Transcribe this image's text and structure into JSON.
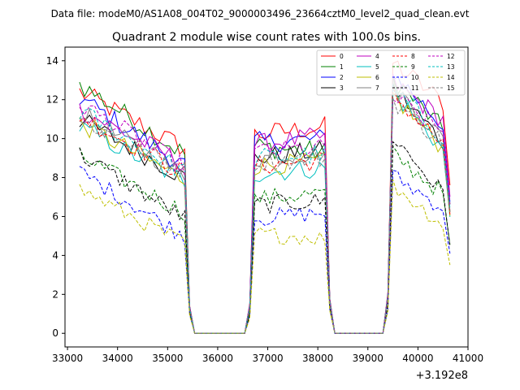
{
  "suptitle": "Data file: modeM0/AS1A08_004T02_9000003496_23664cztM0_level2_quad_clean.evt",
  "chart_data": {
    "type": "line",
    "title": "Quadrant 2 module wise count rates with 100.0s bins.",
    "xlabel": "",
    "ylabel": "",
    "offset_label": "+3.192e8",
    "xlim": [
      32950,
      41000
    ],
    "ylim": [
      -0.7,
      14.7
    ],
    "xticks": [
      33000,
      34000,
      35000,
      36000,
      37000,
      38000,
      39000,
      40000,
      41000
    ],
    "xtick_labels": [
      "33000",
      "34000",
      "35000",
      "36000",
      "37000",
      "38000",
      "39000",
      "40000",
      "41000"
    ],
    "yticks": [
      0,
      2,
      4,
      6,
      8,
      10,
      12,
      14
    ],
    "ytick_labels": [
      "0",
      "2",
      "4",
      "6",
      "8",
      "10",
      "12",
      "14"
    ],
    "legend_position": "upper-right",
    "time_segments": [
      {
        "start": 33240,
        "end": 35340
      },
      {
        "start": 36740,
        "end": 38140
      },
      {
        "start": 39500,
        "end": 40590
      }
    ],
    "zero_interval": [
      35540,
      36740
    ],
    "zero_interval_2": [
      38340,
      39340
    ],
    "series": [
      {
        "name": "0",
        "color": "#ff0000",
        "dash": "solid",
        "levels": [
          12.4,
          9.5,
          10.2,
          10.6,
          13.9,
          11.7
        ]
      },
      {
        "name": "1",
        "color": "#008000",
        "dash": "solid",
        "levels": [
          12.8,
          9.2,
          9.6,
          9.3,
          13.1,
          10.2
        ]
      },
      {
        "name": "2",
        "color": "#0000ff",
        "dash": "solid",
        "levels": [
          12.1,
          8.6,
          9.8,
          10.0,
          13.4,
          10.4
        ]
      },
      {
        "name": "3",
        "color": "#000000",
        "dash": "solid",
        "levels": [
          11.0,
          8.0,
          9.0,
          9.4,
          12.6,
          9.6
        ]
      },
      {
        "name": "4",
        "color": "#bf00bf",
        "dash": "solid",
        "levels": [
          11.5,
          8.7,
          9.7,
          10.1,
          12.9,
          10.8
        ]
      },
      {
        "name": "5",
        "color": "#00bfbf",
        "dash": "solid",
        "levels": [
          10.6,
          7.8,
          8.2,
          8.5,
          12.4,
          9.2
        ]
      },
      {
        "name": "6",
        "color": "#bfbf00",
        "dash": "solid",
        "levels": [
          10.8,
          7.9,
          8.6,
          8.8,
          12.2,
          9.3
        ]
      },
      {
        "name": "7",
        "color": "#808080",
        "dash": "solid",
        "levels": [
          11.3,
          8.1,
          9.0,
          9.3,
          12.7,
          9.7
        ]
      },
      {
        "name": "8",
        "color": "#ff0000",
        "dash": "dashed",
        "levels": [
          11.2,
          8.2,
          8.6,
          8.9,
          12.3,
          9.4
        ]
      },
      {
        "name": "9",
        "color": "#008000",
        "dash": "dashed",
        "levels": [
          9.1,
          6.2,
          6.9,
          7.2,
          9.2,
          7.0
        ]
      },
      {
        "name": "10",
        "color": "#0000ff",
        "dash": "dashed",
        "levels": [
          8.3,
          5.0,
          5.9,
          6.2,
          8.1,
          6.3
        ]
      },
      {
        "name": "11",
        "color": "#000000",
        "dash": "dashed",
        "levels": [
          9.2,
          5.9,
          6.6,
          6.8,
          10.1,
          6.9
        ]
      },
      {
        "name": "12",
        "color": "#bf00bf",
        "dash": "dashed",
        "levels": [
          11.8,
          8.5,
          9.3,
          9.5,
          12.1,
          10.2
        ]
      },
      {
        "name": "13",
        "color": "#00bfbf",
        "dash": "dashed",
        "levels": [
          11.4,
          8.3,
          9.0,
          9.2,
          12.5,
          9.9
        ]
      },
      {
        "name": "14",
        "color": "#bfbf00",
        "dash": "dashed",
        "levels": [
          7.4,
          4.6,
          5.1,
          4.9,
          7.6,
          5.4
        ]
      },
      {
        "name": "15",
        "color": "#808080",
        "dash": "dashed",
        "levels": [
          11.0,
          8.4,
          8.8,
          9.0,
          12.0,
          9.6
        ]
      }
    ]
  }
}
